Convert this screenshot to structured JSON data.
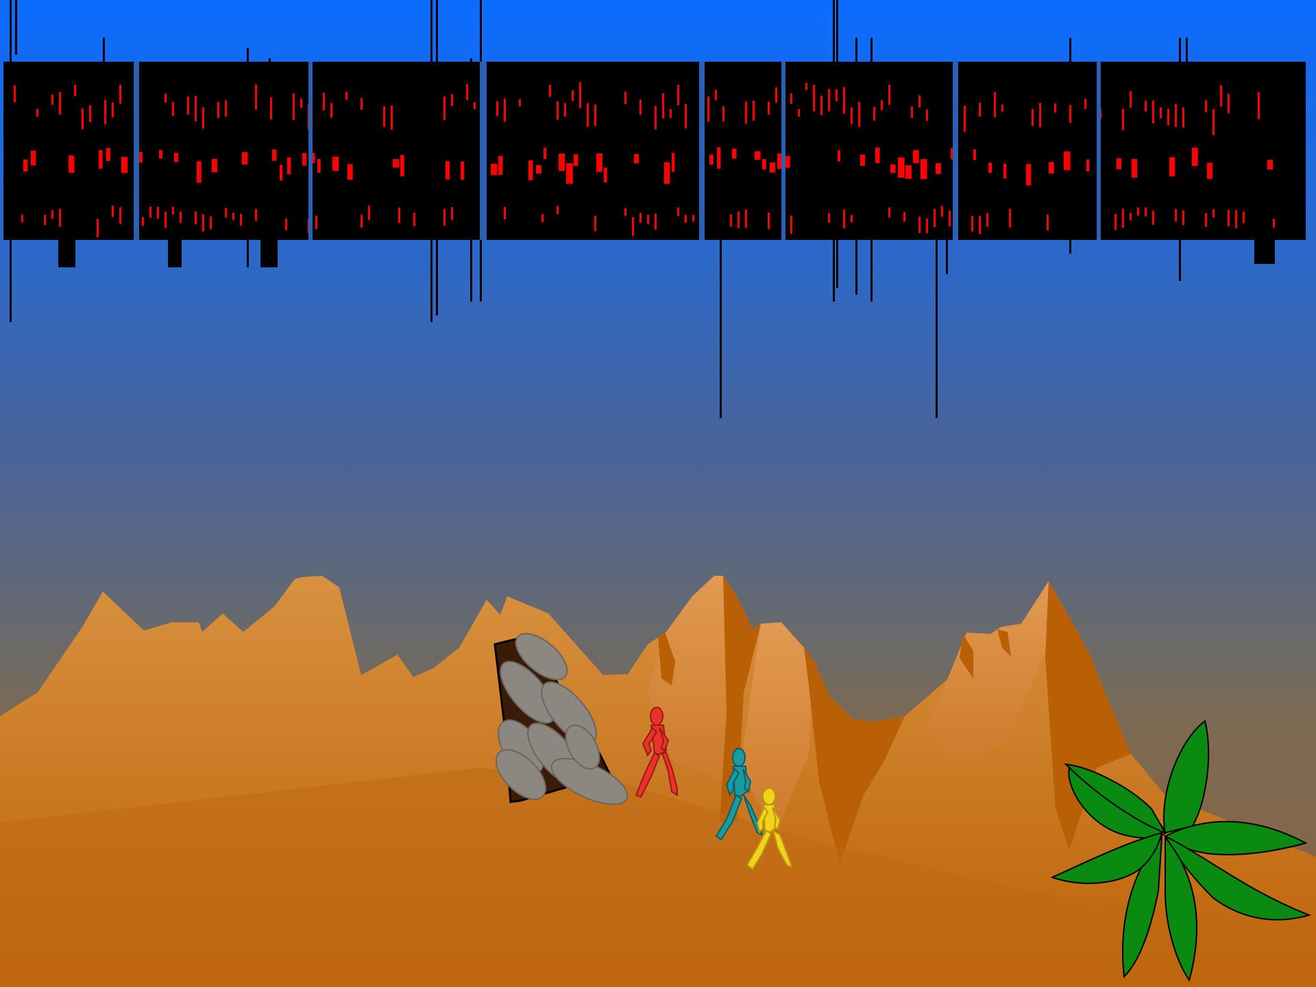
{
  "scene": {
    "colors": {
      "sky_top": "#0a6cff",
      "sky_bottom": "#7d6a52",
      "sand": "#d58a3e",
      "sand_shadow": "#b96007",
      "rock": "#8a8580",
      "figure_red": "#e8322a",
      "figure_teal": "#1a9aa0",
      "figure_yellow": "#f2d21c",
      "palm": "#0b8a12",
      "text_glitch": "#000000",
      "text_glitch_accent": "#ff0000"
    },
    "layers": [
      "glitched-text-band",
      "desert-mountains",
      "stone-doorway",
      "walking-figures",
      "palm-plant"
    ],
    "figures": [
      "red-walker",
      "teal-walker",
      "yellow-walker"
    ]
  }
}
